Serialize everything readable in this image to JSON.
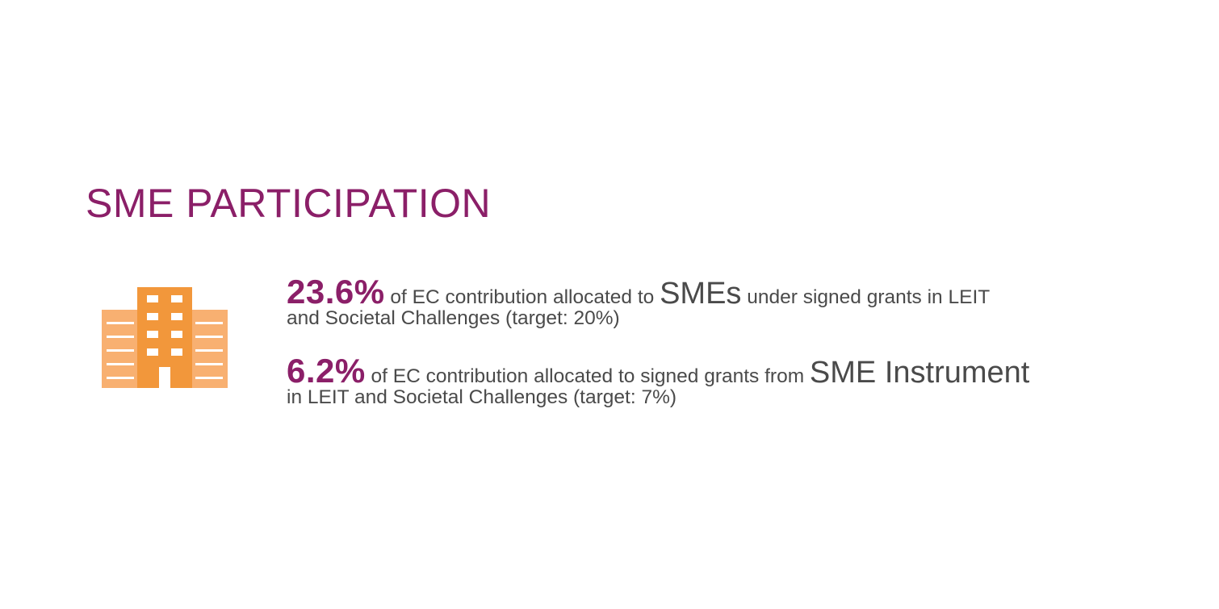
{
  "colors": {
    "accent": "#8b1f68",
    "text": "#4a4a4a",
    "icon_main": "#f2973b",
    "icon_light": "#f8b071",
    "background": "#ffffff"
  },
  "title": "SME PARTICIPATION",
  "icon": "building-icon",
  "stats": [
    {
      "value": "23.6%",
      "text_before": " of EC contribution allocated to ",
      "emphasis": "SMEs",
      "text_after": " under signed grants in LEIT",
      "line2": "and Societal Challenges (target: 20%)"
    },
    {
      "value": "6.2%",
      "text_before": " of EC contribution allocated to signed grants from ",
      "emphasis": "SME Instrument",
      "text_after": "",
      "line2": "in LEIT and Societal Challenges (target: 7%)"
    }
  ]
}
